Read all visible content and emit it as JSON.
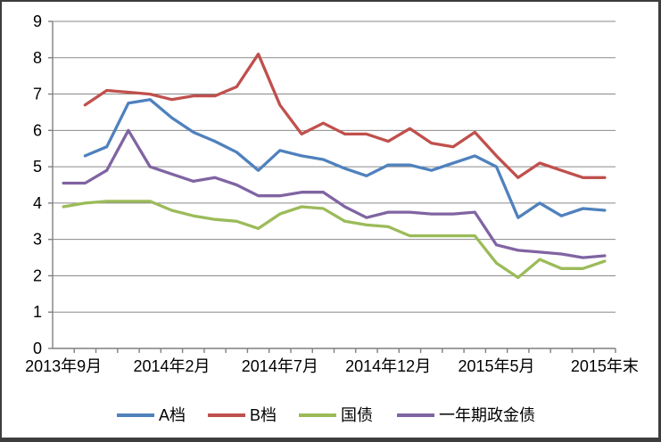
{
  "chart_data": {
    "type": "line",
    "title": "",
    "grid": true,
    "legend_position": "bottom",
    "y_axis": {
      "min": 0,
      "max": 9,
      "step": 1
    },
    "x_axis": {
      "category_count": 26,
      "tick_labels": [
        {
          "index": 0,
          "label": "2013年9月"
        },
        {
          "index": 5,
          "label": "2014年2月"
        },
        {
          "index": 10,
          "label": "2014年7月"
        },
        {
          "index": 15,
          "label": "2014年12月"
        },
        {
          "index": 20,
          "label": "2015年5月"
        },
        {
          "index": 25,
          "label": "2015年末"
        }
      ]
    },
    "series": [
      {
        "name": "A档",
        "color": "#4F81BD",
        "values": [
          null,
          5.3,
          5.55,
          6.75,
          6.85,
          6.35,
          5.95,
          5.7,
          5.4,
          4.9,
          5.45,
          5.3,
          5.2,
          4.95,
          4.75,
          5.05,
          5.05,
          4.9,
          5.1,
          5.3,
          5.0,
          3.6,
          4.0,
          3.65,
          3.85,
          3.8
        ]
      },
      {
        "name": "B档",
        "color": "#C0504D",
        "values": [
          null,
          6.7,
          7.1,
          7.05,
          7.0,
          6.85,
          6.95,
          6.95,
          7.2,
          8.1,
          6.7,
          5.9,
          6.2,
          5.9,
          5.9,
          5.7,
          6.05,
          5.65,
          5.55,
          5.95,
          5.3,
          4.7,
          5.1,
          4.9,
          4.7,
          4.7
        ]
      },
      {
        "name": "国债",
        "color": "#9BBB59",
        "values": [
          3.9,
          4.0,
          4.05,
          4.05,
          4.05,
          3.8,
          3.65,
          3.55,
          3.5,
          3.3,
          3.7,
          3.9,
          3.85,
          3.5,
          3.4,
          3.35,
          3.1,
          3.1,
          3.1,
          3.1,
          2.35,
          1.95,
          2.45,
          2.2,
          2.2,
          2.4
        ]
      },
      {
        "name": "一年期政金债",
        "color": "#8064A2",
        "values": [
          4.55,
          4.55,
          4.9,
          6.0,
          5.0,
          4.8,
          4.6,
          4.7,
          4.5,
          4.2,
          4.2,
          4.3,
          4.3,
          3.9,
          3.6,
          3.75,
          3.75,
          3.7,
          3.7,
          3.75,
          2.85,
          2.7,
          2.65,
          2.6,
          2.5,
          2.55
        ]
      }
    ],
    "colors": {
      "grid": "#8a8a8a",
      "axis": "#7f7f7f",
      "text": "#000000",
      "frame": "#3d3d3d",
      "background": "#ffffff"
    }
  }
}
